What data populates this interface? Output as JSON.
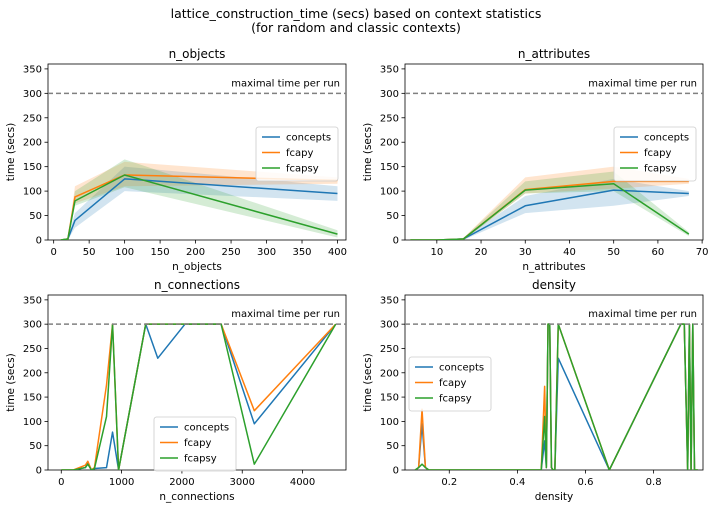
{
  "figure": {
    "title_line1": "lattice_construction_time (secs) based on context statistics",
    "title_line2": "(for random and classic contexts)"
  },
  "colors": {
    "concepts": "#1f77b4",
    "fcapy": "#ff7f0e",
    "fcapsy": "#2ca02c",
    "hline": "#808080"
  },
  "chart_data": [
    {
      "type": "line",
      "title": "n_objects",
      "xlabel": "n_objects",
      "ylabel": "time (secs)",
      "xlim": [
        -8,
        412
      ],
      "ylim": [
        0,
        360
      ],
      "xticks": [
        0,
        50,
        100,
        150,
        200,
        250,
        300,
        350,
        400
      ],
      "yticks": [
        0,
        50,
        100,
        150,
        200,
        250,
        300,
        350
      ],
      "hline": {
        "value": 300,
        "label": "maximal time per run"
      },
      "legend": "center-right",
      "series": [
        {
          "name": "concepts",
          "color_key": "concepts",
          "x": [
            10,
            20,
            30,
            100,
            400
          ],
          "y": [
            0,
            2,
            40,
            125,
            95
          ],
          "band_low": [
            0,
            0,
            25,
            100,
            80
          ],
          "band_high": [
            0,
            4,
            55,
            150,
            110
          ]
        },
        {
          "name": "fcapy",
          "color_key": "fcapy",
          "x": [
            10,
            20,
            30,
            100,
            400
          ],
          "y": [
            0,
            2,
            88,
            133,
            122
          ],
          "band_low": [
            0,
            0,
            75,
            110,
            115
          ],
          "band_high": [
            0,
            4,
            110,
            160,
            128
          ]
        },
        {
          "name": "fcapsy",
          "color_key": "fcapsy",
          "x": [
            10,
            20,
            30,
            100,
            400
          ],
          "y": [
            0,
            2,
            80,
            133,
            12
          ],
          "band_low": [
            0,
            0,
            70,
            108,
            5
          ],
          "band_high": [
            0,
            4,
            100,
            165,
            20
          ]
        }
      ]
    },
    {
      "type": "line",
      "title": "n_attributes",
      "xlabel": "n_attributes",
      "ylabel": "time (secs)",
      "xlim": [
        2.8,
        70.2
      ],
      "ylim": [
        0,
        360
      ],
      "xticks": [
        10,
        20,
        30,
        40,
        50,
        60,
        70
      ],
      "yticks": [
        0,
        50,
        100,
        150,
        200,
        250,
        300,
        350
      ],
      "hline": {
        "value": 300,
        "label": "maximal time per run"
      },
      "legend": "center-right",
      "series": [
        {
          "name": "concepts",
          "color_key": "concepts",
          "x": [
            4,
            10,
            16,
            30,
            50,
            67
          ],
          "y": [
            0,
            0,
            2,
            70,
            102,
            95
          ],
          "band_low": [
            0,
            0,
            0,
            55,
            70,
            90
          ],
          "band_high": [
            0,
            0,
            4,
            90,
            125,
            100
          ]
        },
        {
          "name": "fcapy",
          "color_key": "fcapy",
          "x": [
            4,
            10,
            16,
            30,
            50,
            67
          ],
          "y": [
            0,
            0,
            2,
            103,
            120,
            120
          ],
          "band_low": [
            0,
            0,
            0,
            95,
            105,
            115
          ],
          "band_high": [
            0,
            0,
            4,
            128,
            150,
            125
          ]
        },
        {
          "name": "fcapsy",
          "color_key": "fcapsy",
          "x": [
            4,
            10,
            16,
            30,
            50,
            67
          ],
          "y": [
            0,
            0,
            2,
            102,
            115,
            12
          ],
          "band_low": [
            0,
            0,
            0,
            95,
            100,
            8
          ],
          "band_high": [
            0,
            0,
            4,
            120,
            140,
            16
          ]
        }
      ]
    },
    {
      "type": "line",
      "title": "n_connections",
      "xlabel": "n_connections",
      "ylabel": "time (secs)",
      "xlim": [
        -220,
        4720
      ],
      "ylim": [
        0,
        360
      ],
      "xticks": [
        0,
        1000,
        2000,
        3000,
        4000
      ],
      "yticks": [
        0,
        50,
        100,
        150,
        200,
        250,
        300,
        350
      ],
      "hline": {
        "value": 300,
        "label": "maximal time per run"
      },
      "legend": "lower-center",
      "series": [
        {
          "name": "concepts",
          "color_key": "concepts",
          "x": [
            0,
            200,
            400,
            440,
            500,
            550,
            750,
            850,
            950,
            1400,
            1600,
            2050,
            2650,
            3200,
            4550
          ],
          "y": [
            0,
            0,
            5,
            15,
            0,
            3,
            5,
            78,
            0,
            300,
            230,
            300,
            300,
            95,
            300
          ]
        },
        {
          "name": "fcapy",
          "color_key": "fcapy",
          "x": [
            0,
            200,
            400,
            440,
            500,
            550,
            750,
            850,
            950,
            1400,
            1600,
            2050,
            2650,
            3200,
            4550
          ],
          "y": [
            0,
            0,
            10,
            18,
            0,
            5,
            175,
            300,
            0,
            300,
            300,
            300,
            300,
            122,
            300
          ]
        },
        {
          "name": "fcapsy",
          "color_key": "fcapsy",
          "x": [
            0,
            200,
            400,
            440,
            500,
            550,
            750,
            850,
            950,
            1400,
            1600,
            2050,
            2650,
            3200,
            4550
          ],
          "y": [
            0,
            0,
            5,
            12,
            0,
            3,
            110,
            300,
            0,
            300,
            300,
            300,
            300,
            12,
            300
          ]
        }
      ]
    },
    {
      "type": "line",
      "title": "density",
      "xlabel": "density",
      "ylabel": "time (secs)",
      "xlim": [
        0.07,
        0.945
      ],
      "ylim": [
        0,
        360
      ],
      "xticks": [
        0.2,
        0.4,
        0.6,
        0.8
      ],
      "xtick_labels": [
        "0.2",
        "0.4",
        "0.6",
        "0.8"
      ],
      "yticks": [
        0,
        50,
        100,
        150,
        200,
        250,
        300,
        350
      ],
      "hline": {
        "value": 300,
        "label": "maximal time per run"
      },
      "legend": "upper-left",
      "series": [
        {
          "name": "concepts",
          "color_key": "concepts",
          "x": [
            0.1,
            0.11,
            0.12,
            0.13,
            0.14,
            0.47,
            0.48,
            0.485,
            0.49,
            0.495,
            0.5,
            0.505,
            0.51,
            0.52,
            0.67,
            0.88,
            0.89,
            0.9,
            0.905,
            0.91,
            0.915,
            0.92,
            0.93
          ],
          "y": [
            0,
            5,
            95,
            5,
            0,
            0,
            60,
            5,
            300,
            300,
            5,
            0,
            0,
            230,
            0,
            300,
            300,
            0,
            300,
            0,
            300,
            0,
            0
          ]
        },
        {
          "name": "fcapy",
          "color_key": "fcapy",
          "x": [
            0.1,
            0.11,
            0.12,
            0.13,
            0.14,
            0.47,
            0.48,
            0.485,
            0.49,
            0.495,
            0.5,
            0.505,
            0.51,
            0.52,
            0.67,
            0.88,
            0.89,
            0.9,
            0.905,
            0.91,
            0.915,
            0.92,
            0.93
          ],
          "y": [
            0,
            5,
            125,
            5,
            0,
            0,
            172,
            5,
            300,
            300,
            5,
            0,
            0,
            300,
            0,
            300,
            300,
            0,
            300,
            0,
            300,
            0,
            0
          ]
        },
        {
          "name": "fcapsy",
          "color_key": "fcapsy",
          "x": [
            0.1,
            0.11,
            0.12,
            0.13,
            0.14,
            0.47,
            0.48,
            0.485,
            0.49,
            0.495,
            0.5,
            0.505,
            0.51,
            0.52,
            0.67,
            0.88,
            0.89,
            0.9,
            0.905,
            0.91,
            0.915,
            0.92,
            0.93
          ],
          "y": [
            0,
            5,
            12,
            5,
            0,
            0,
            110,
            5,
            300,
            300,
            5,
            0,
            0,
            300,
            0,
            300,
            300,
            0,
            300,
            0,
            300,
            0,
            0
          ]
        }
      ]
    }
  ]
}
